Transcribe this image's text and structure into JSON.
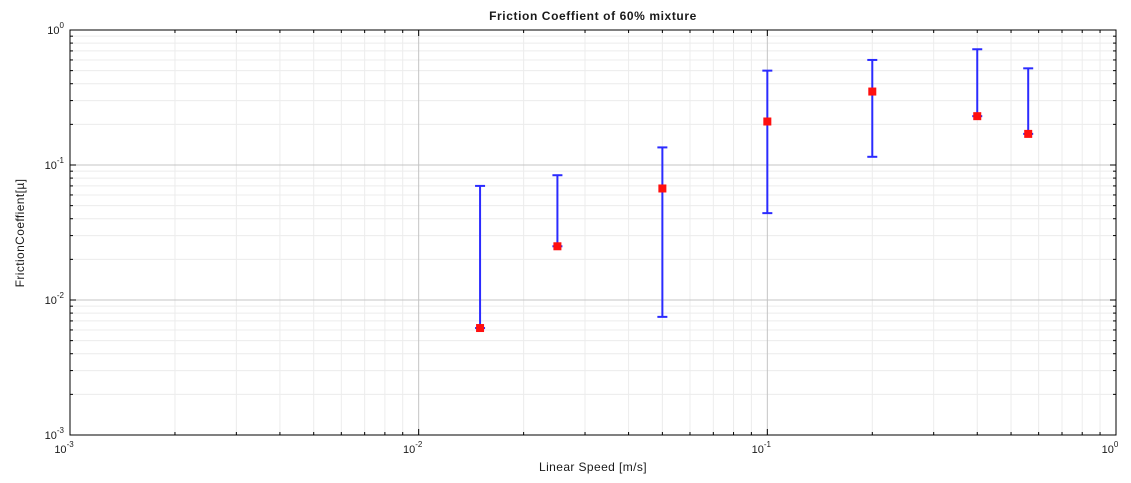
{
  "chart_data": {
    "type": "scatter",
    "title": "Friction Coeffient of 60% mixture",
    "xlabel": "Linear Speed [m/s]",
    "ylabel": "FrictionCoeffient[µ]",
    "x_scale": "log",
    "y_scale": "log",
    "xlim": [
      0.001,
      1
    ],
    "ylim": [
      0.001,
      1
    ],
    "grid": true,
    "x_ticks": [
      {
        "base": "10",
        "exp": "-3",
        "value": 0.001
      },
      {
        "base": "10",
        "exp": "-2",
        "value": 0.01
      },
      {
        "base": "10",
        "exp": "-1",
        "value": 0.1
      },
      {
        "base": "10",
        "exp": "0",
        "value": 1
      }
    ],
    "y_ticks": [
      {
        "base": "10",
        "exp": "-3",
        "value": 0.001
      },
      {
        "base": "10",
        "exp": "-2",
        "value": 0.01
      },
      {
        "base": "10",
        "exp": "-1",
        "value": 0.1
      },
      {
        "base": "10",
        "exp": "0",
        "value": 1
      }
    ],
    "series": [
      {
        "marker_color": "#ff1010",
        "errorbar_color": "#2b2bff",
        "points": [
          {
            "x": 0.015,
            "y": 0.0062,
            "y_low": 0.0062,
            "y_high": 0.07
          },
          {
            "x": 0.025,
            "y": 0.025,
            "y_low": 0.025,
            "y_high": 0.084
          },
          {
            "x": 0.05,
            "y": 0.067,
            "y_low": 0.0075,
            "y_high": 0.135
          },
          {
            "x": 0.1,
            "y": 0.21,
            "y_low": 0.044,
            "y_high": 0.5
          },
          {
            "x": 0.2,
            "y": 0.35,
            "y_low": 0.115,
            "y_high": 0.6
          },
          {
            "x": 0.4,
            "y": 0.23,
            "y_low": 0.23,
            "y_high": 0.72
          },
          {
            "x": 0.56,
            "y": 0.17,
            "y_low": 0.17,
            "y_high": 0.52
          }
        ]
      }
    ]
  }
}
